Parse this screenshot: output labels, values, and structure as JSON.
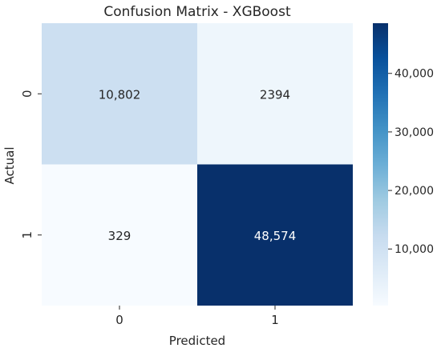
{
  "chart_data": {
    "type": "heatmap",
    "title": "Confusion Matrix - XGBoost",
    "xlabel": "Predicted",
    "ylabel": "Actual",
    "x_categories": [
      "0",
      "1"
    ],
    "y_categories": [
      "0",
      "1"
    ],
    "values": [
      [
        10802,
        2394
      ],
      [
        329,
        48574
      ]
    ],
    "cell_labels": [
      [
        "10,802",
        "2394"
      ],
      [
        "329",
        "48,574"
      ]
    ],
    "colormap": "Blues",
    "colorbar": {
      "range": [
        329,
        48574
      ],
      "ticks": [
        10000,
        20000,
        30000,
        40000
      ],
      "tick_labels": [
        "10,000",
        "20,000",
        "30,000",
        "40,000"
      ]
    },
    "grid": false,
    "legend": "none"
  }
}
